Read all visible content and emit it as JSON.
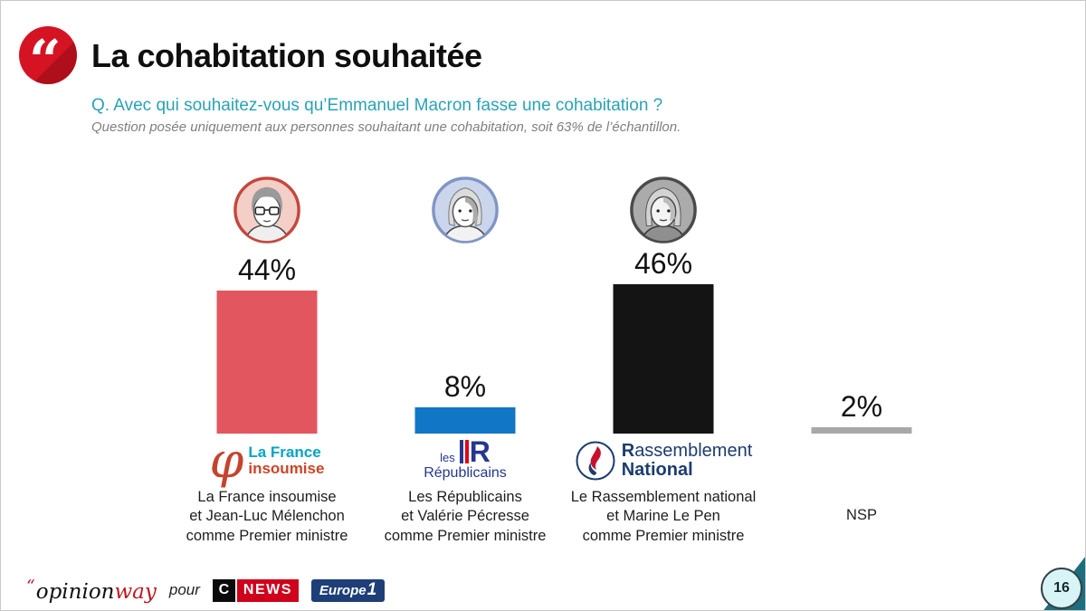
{
  "header": {
    "quote_glyph": "“",
    "title": "La cohabitation souhaitée"
  },
  "question": {
    "text": "Q. Avec qui souhaitez-vous qu’Emmanuel Macron fasse une cohabitation ?",
    "note": "Question posée uniquement aux personnes souhaitant une cohabitation, soit 63% de l’échantillon."
  },
  "chart_data": {
    "type": "bar",
    "title": "La cohabitation souhaitée",
    "categories": [
      "La France insoumise et Jean-Luc Mélenchon comme Premier ministre",
      "Les Républicains et Valérie Pécresse comme Premier ministre",
      "Le Rassemblement national et Marine Le Pen comme Premier ministre",
      "NSP"
    ],
    "values": [
      44,
      8,
      46,
      2
    ],
    "value_labels": [
      "44%",
      "8%",
      "46%",
      "2%"
    ],
    "unit": "%",
    "bar_colors": [
      "#E2575F",
      "#1176C5",
      "#141414",
      "#A8A8A8"
    ],
    "ylim": [
      0,
      50
    ],
    "grid": false,
    "legend": false
  },
  "columns": [
    {
      "label_lines": [
        "La France insoumise",
        "et Jean-Luc Mélenchon",
        "comme Premier ministre"
      ],
      "logo": {
        "phi": "φ",
        "top": "La France",
        "bottom": "insoumise"
      }
    },
    {
      "label_lines": [
        "Les Républicains",
        "et Valérie Pécresse",
        "comme Premier ministre"
      ],
      "logo": {
        "les": "les",
        "r": "R",
        "name": "Républicains"
      }
    },
    {
      "label_lines": [
        "Le Rassemblement national",
        "et Marine Le Pen",
        "comme Premier ministre"
      ],
      "logo": {
        "r": "R",
        "rest": "assemblement",
        "line2": "National"
      }
    },
    {
      "label_lines": [
        "NSP"
      ]
    }
  ],
  "footer": {
    "brand_quote": "“",
    "brand_black": "opinion",
    "brand_red": "way",
    "pour": "pour",
    "cnews": {
      "c": "C",
      "news": "NEWS"
    },
    "europe1": {
      "word": "Europe",
      "one": "1"
    }
  },
  "page_badge": "16",
  "colors": {
    "question_teal": "#29A3B4",
    "wedge_teal": "#1D6F7F",
    "badge_bg": "#D8F4F6",
    "cnews_red": "#D0021B",
    "europe1_navy": "#1E3E78",
    "lfi_red": "#CE4428",
    "lfi_cyan": "#00A5C8",
    "lr_navy": "#24388F",
    "rn_navy": "#1D3C6E",
    "quote_badge_red": "#D51322"
  }
}
